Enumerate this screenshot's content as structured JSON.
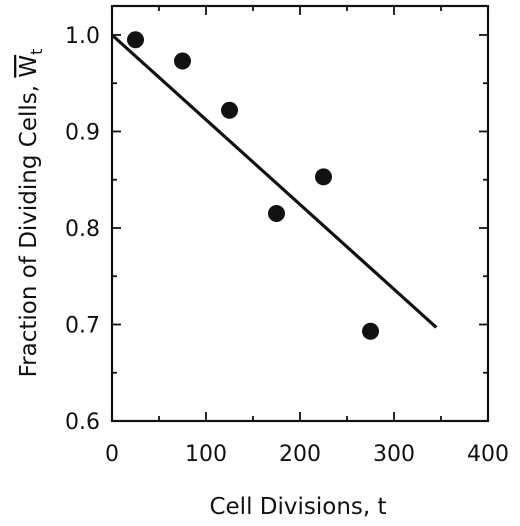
{
  "chart_data": {
    "type": "scatter",
    "xlabel": "Cell Divisions, t",
    "ylabel_main": "Fraction of Dividing Cells, ",
    "ylabel_symbol": "W",
    "ylabel_subscript": "t",
    "xlim": [
      0,
      400
    ],
    "ylim": [
      0.6,
      1.03
    ],
    "x_ticks": [
      0,
      100,
      200,
      300,
      400
    ],
    "x_tick_labels": [
      "0",
      "100",
      "200",
      "300",
      "400"
    ],
    "y_ticks": [
      0.6,
      0.7,
      0.8,
      0.9,
      1.0
    ],
    "y_tick_labels": [
      "0.6",
      "0.7",
      "0.8",
      "0.9",
      "1.0"
    ],
    "x_minor_step": 50,
    "y_minor_step": 0.05,
    "grid": false,
    "series": [
      {
        "type": "scatter",
        "x": [
          25,
          75,
          125,
          175,
          225,
          275
        ],
        "y": [
          0.995,
          0.973,
          0.922,
          0.815,
          0.853,
          0.693
        ]
      }
    ],
    "fit_line": {
      "x": [
        0,
        345
      ],
      "y": [
        1.0,
        0.697
      ]
    }
  }
}
